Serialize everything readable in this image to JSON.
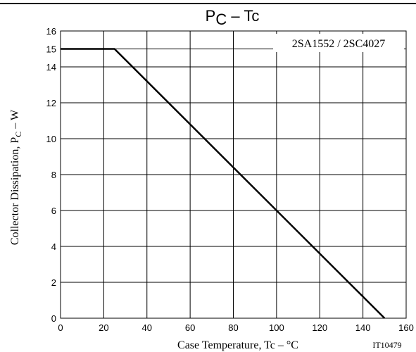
{
  "chart_data": {
    "type": "line",
    "title": {
      "main": "P",
      "sub": "C",
      "rest": " – Tc"
    },
    "xlabel": "Case Temperature, Tc  –  °C",
    "ylabel": {
      "main": "Collector Dissipation, P",
      "sub": "C",
      "rest": "  –  W"
    },
    "annotation": "2SA1552 / 2SC4027",
    "figure_code": "IT10479",
    "xlim": [
      0,
      160
    ],
    "ylim": [
      0,
      16
    ],
    "xticks": [
      0,
      20,
      40,
      60,
      80,
      100,
      120,
      140,
      160
    ],
    "yticks": [
      0,
      2,
      4,
      6,
      8,
      10,
      12,
      14,
      15,
      16
    ],
    "grid": true,
    "series": [
      {
        "x": [
          0,
          25,
          150
        ],
        "y": [
          15,
          15,
          0
        ]
      }
    ]
  },
  "colors": {
    "line": "#000000",
    "grid": "#000000",
    "background": "#ffffff"
  }
}
